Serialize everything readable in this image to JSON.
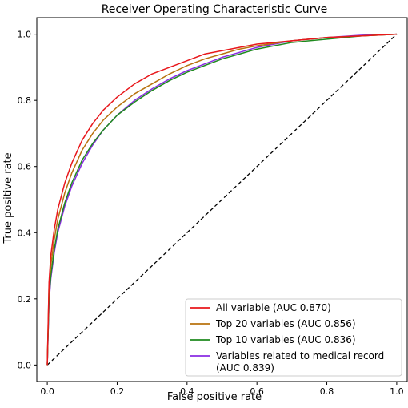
{
  "chart_data": {
    "type": "line",
    "title": "Receiver Operating Characteristic Curve",
    "xlabel": "False positive rate",
    "ylabel": "True positive rate",
    "xlim": [
      -0.03,
      1.03
    ],
    "ylim": [
      -0.05,
      1.05
    ],
    "x_ticks": [
      "0.0",
      "0.2",
      "0.4",
      "0.6",
      "0.8",
      "1.0"
    ],
    "y_ticks": [
      "0.0",
      "0.2",
      "0.4",
      "0.6",
      "0.8",
      "1.0"
    ],
    "grid": false,
    "legend_position": "lower-right",
    "series": [
      {
        "name": "All variable (AUC 0.870)",
        "color": "#e8171b",
        "x": [
          0,
          0.005,
          0.01,
          0.02,
          0.03,
          0.05,
          0.07,
          0.1,
          0.13,
          0.16,
          0.2,
          0.25,
          0.3,
          0.35,
          0.4,
          0.45,
          0.5,
          0.55,
          0.6,
          0.7,
          0.8,
          0.9,
          1.0
        ],
        "y": [
          0,
          0.25,
          0.33,
          0.41,
          0.47,
          0.55,
          0.61,
          0.68,
          0.73,
          0.77,
          0.81,
          0.85,
          0.88,
          0.9,
          0.92,
          0.94,
          0.95,
          0.96,
          0.97,
          0.98,
          0.99,
          0.995,
          1.0
        ]
      },
      {
        "name": "Top 20 variables (AUC 0.856)",
        "color": "#b8720f",
        "x": [
          0,
          0.005,
          0.01,
          0.02,
          0.03,
          0.05,
          0.07,
          0.1,
          0.13,
          0.16,
          0.2,
          0.25,
          0.3,
          0.35,
          0.4,
          0.45,
          0.5,
          0.55,
          0.6,
          0.7,
          0.8,
          0.9,
          1.0
        ],
        "y": [
          0,
          0.24,
          0.3,
          0.38,
          0.44,
          0.52,
          0.58,
          0.65,
          0.7,
          0.74,
          0.78,
          0.82,
          0.85,
          0.88,
          0.905,
          0.925,
          0.94,
          0.955,
          0.965,
          0.98,
          0.99,
          0.995,
          1.0
        ]
      },
      {
        "name": "Top 10 variables (AUC 0.836)",
        "color": "#1e8a1e",
        "x": [
          0,
          0.005,
          0.01,
          0.02,
          0.03,
          0.05,
          0.07,
          0.1,
          0.13,
          0.16,
          0.2,
          0.25,
          0.3,
          0.35,
          0.4,
          0.45,
          0.5,
          0.55,
          0.6,
          0.7,
          0.8,
          0.9,
          1.0
        ],
        "y": [
          0,
          0.2,
          0.27,
          0.35,
          0.41,
          0.49,
          0.55,
          0.62,
          0.67,
          0.71,
          0.755,
          0.795,
          0.83,
          0.86,
          0.885,
          0.905,
          0.925,
          0.94,
          0.955,
          0.975,
          0.985,
          0.995,
          1.0
        ]
      },
      {
        "name": "Variables related to medical record (AUC 0.839)",
        "color": "#8a2be2",
        "x": [
          0,
          0.005,
          0.01,
          0.02,
          0.03,
          0.05,
          0.07,
          0.1,
          0.13,
          0.16,
          0.2,
          0.25,
          0.3,
          0.35,
          0.4,
          0.45,
          0.5,
          0.55,
          0.6,
          0.7,
          0.8,
          0.9,
          1.0
        ],
        "y": [
          0,
          0.19,
          0.26,
          0.34,
          0.4,
          0.48,
          0.54,
          0.61,
          0.665,
          0.71,
          0.755,
          0.8,
          0.835,
          0.865,
          0.89,
          0.91,
          0.93,
          0.945,
          0.96,
          0.98,
          0.99,
          0.997,
          1.0
        ]
      }
    ],
    "reference_line": {
      "x": [
        0,
        1
      ],
      "y": [
        0,
        1
      ],
      "style": "dashed",
      "color": "#000000"
    }
  }
}
